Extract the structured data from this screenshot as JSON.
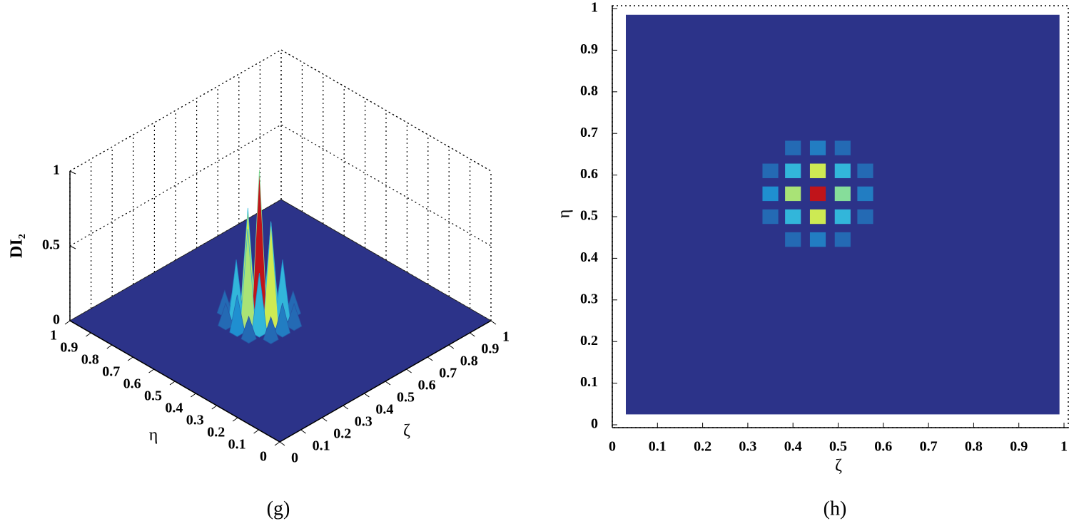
{
  "chart_data": [
    {
      "type": "surface",
      "caption": "(g)",
      "xlabel": "ζ",
      "ylabel": "η",
      "zlabel": "DI₂",
      "xlim": [
        0,
        1
      ],
      "ylim": [
        0,
        1
      ],
      "zlim": [
        0,
        1
      ],
      "xticks": [
        0,
        0.1,
        0.2,
        0.3,
        0.4,
        0.5,
        0.6,
        0.7,
        0.8,
        0.9,
        1
      ],
      "yticks": [
        0,
        0.1,
        0.2,
        0.3,
        0.4,
        0.5,
        0.6,
        0.7,
        0.8,
        0.9,
        1
      ],
      "zticks": [
        0,
        0.5,
        1
      ],
      "grid": true,
      "colormap": [
        "#2c3389",
        "#1f8fd0",
        "#3fd0e0",
        "#f0f030",
        "#c0141a"
      ],
      "x": [
        0.455,
        0.455,
        0.455,
        0.4,
        0.51,
        0.4,
        0.51,
        0.4,
        0.51,
        0.35,
        0.56,
        0.455,
        0.455,
        0.35,
        0.35,
        0.56,
        0.56,
        0.4,
        0.51,
        0.4,
        0.51
      ],
      "y": [
        0.555,
        0.61,
        0.5,
        0.555,
        0.555,
        0.61,
        0.61,
        0.5,
        0.5,
        0.555,
        0.555,
        0.665,
        0.445,
        0.61,
        0.5,
        0.61,
        0.5,
        0.665,
        0.665,
        0.445,
        0.445
      ],
      "values": [
        1,
        0.7,
        0.7,
        0.65,
        0.6,
        0.4,
        0.4,
        0.4,
        0.4,
        0.25,
        0.2,
        0.2,
        0.2,
        0.15,
        0.15,
        0.15,
        0.15,
        0.15,
        0.15,
        0.15,
        0.15
      ]
    },
    {
      "type": "heatmap",
      "caption": "(h)",
      "xlabel": "ζ",
      "ylabel": "η",
      "xlim": [
        0,
        1
      ],
      "ylim": [
        0,
        1
      ],
      "zlim": [
        0,
        1
      ],
      "image_xlim": [
        0.03,
        0.99
      ],
      "image_ylim": [
        0.025,
        0.985
      ],
      "xticks": [
        0,
        0.1,
        0.2,
        0.3,
        0.4,
        0.5,
        0.6,
        0.7,
        0.8,
        0.9,
        1
      ],
      "yticks": [
        0,
        0.1,
        0.2,
        0.3,
        0.4,
        0.5,
        0.6,
        0.7,
        0.8,
        0.9,
        1
      ],
      "colormap": [
        "#2c3389",
        "#1f8fd0",
        "#3fd0e0",
        "#f0f030",
        "#c0141a"
      ],
      "x": [
        0.455,
        0.455,
        0.455,
        0.4,
        0.51,
        0.4,
        0.51,
        0.4,
        0.51,
        0.35,
        0.56,
        0.455,
        0.455,
        0.35,
        0.35,
        0.56,
        0.56,
        0.4,
        0.51,
        0.4,
        0.51
      ],
      "y": [
        0.555,
        0.61,
        0.5,
        0.555,
        0.555,
        0.61,
        0.61,
        0.5,
        0.5,
        0.555,
        0.555,
        0.665,
        0.445,
        0.61,
        0.5,
        0.61,
        0.5,
        0.665,
        0.665,
        0.445,
        0.445
      ],
      "values": [
        1,
        0.7,
        0.7,
        0.65,
        0.6,
        0.4,
        0.4,
        0.4,
        0.4,
        0.25,
        0.2,
        0.2,
        0.2,
        0.15,
        0.15,
        0.15,
        0.15,
        0.15,
        0.15,
        0.15,
        0.15
      ]
    }
  ]
}
